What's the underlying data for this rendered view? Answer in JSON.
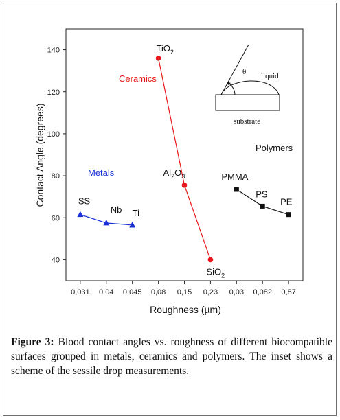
{
  "chart_data": {
    "type": "scatter",
    "xlabel": "Roughness (µm)",
    "ylabel": "Contact Angle (degrees)",
    "categories": [
      "0,031",
      "0.04",
      "0,045",
      "0,08",
      "0,15",
      "0,23",
      "0,03",
      "0,082",
      "0,87"
    ],
    "ylim": [
      30,
      150
    ],
    "yticks": [
      40,
      60,
      80,
      100,
      120,
      140
    ],
    "grid": false,
    "series": [
      {
        "name": "Metals",
        "color": "#1a2fd6",
        "marker": "triangle",
        "points": [
          {
            "x": "0,031",
            "y": 61.5
          },
          {
            "x": "0.04",
            "y": 57.5
          },
          {
            "x": "0,045",
            "y": 56.5
          }
        ]
      },
      {
        "name": "Ceramics",
        "color": "#e8161b",
        "marker": "circle",
        "points": [
          {
            "x": "0,08",
            "y": 136
          },
          {
            "x": "0,15",
            "y": 75.5
          },
          {
            "x": "0,23",
            "y": 40
          }
        ]
      },
      {
        "name": "Polymers",
        "color": "#111111",
        "marker": "square",
        "points": [
          {
            "x": "0,03",
            "y": 73.5
          },
          {
            "x": "0,082",
            "y": 65.5
          },
          {
            "x": "0,87",
            "y": 61.5
          }
        ]
      }
    ],
    "point_labels": [
      {
        "text": "SS",
        "sub": ""
      },
      {
        "text": "Nb",
        "sub": ""
      },
      {
        "text": "Ti",
        "sub": ""
      },
      {
        "text": "TiO",
        "sub": "2"
      },
      {
        "text": "Al",
        "sub": "2",
        "text2": "O",
        "sub2": "3"
      },
      {
        "text": "SiO",
        "sub": "2"
      },
      {
        "text": "PMMA",
        "sub": ""
      },
      {
        "text": "PS",
        "sub": ""
      },
      {
        "text": "PE",
        "sub": ""
      }
    ]
  },
  "inset": {
    "angle_label": "θ",
    "liquid_label": "liquid",
    "substrate_label": "substrate"
  },
  "caption": {
    "label": "Figure 3:",
    "text": " Blood contact angles vs. roughness of different biocompatible surfaces grouped in metals, ceramics and polymers. The inset shows a scheme of the sessile drop measurements."
  }
}
